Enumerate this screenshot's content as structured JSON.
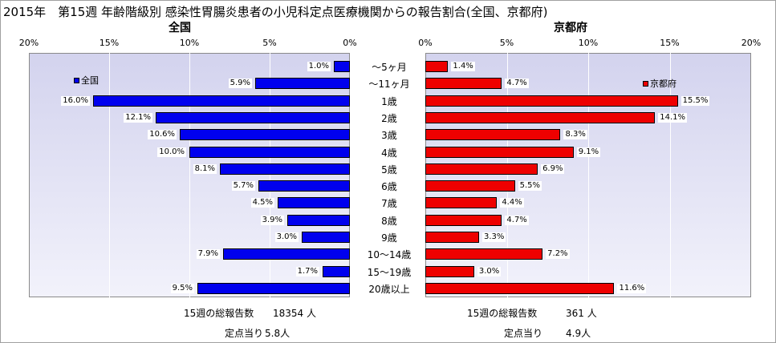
{
  "title": "2015年　第15週 年齢階級別 感染性胃腸炎患者の小児科定点医療機関からの報告割合(全国、京都府)",
  "colors": {
    "left_bar": "#0000ee",
    "right_bar": "#ee0000"
  },
  "chart_data": [
    {
      "type": "bar",
      "orientation": "horizontal",
      "title": "全国",
      "legend": "全国",
      "legend_position": "top-left",
      "xlim": [
        0,
        20
      ],
      "x_direction": "reversed",
      "ticks": [
        "20%",
        "15%",
        "10%",
        "5%",
        "0%"
      ],
      "categories": [
        "～5ヶ月",
        "～11ヶ月",
        "1歳",
        "2歳",
        "3歳",
        "4歳",
        "5歳",
        "6歳",
        "7歳",
        "8歳",
        "9歳",
        "10～14歳",
        "15～19歳",
        "20歳以上"
      ],
      "values": [
        1.0,
        5.9,
        16.0,
        12.1,
        10.6,
        10.0,
        8.1,
        5.7,
        4.5,
        3.9,
        3.0,
        7.9,
        1.7,
        9.5
      ],
      "labels": [
        "1.0%",
        "5.9%",
        "16.0%",
        "12.1%",
        "10.6%",
        "10.0%",
        "8.1%",
        "5.7%",
        "4.5%",
        "3.9%",
        "3.0%",
        "7.9%",
        "1.7%",
        "9.5%"
      ]
    },
    {
      "type": "bar",
      "orientation": "horizontal",
      "title": "京都府",
      "legend": "京都府",
      "legend_position": "top-right",
      "xlim": [
        0,
        20
      ],
      "ticks": [
        "0%",
        "5%",
        "10%",
        "15%",
        "20%"
      ],
      "categories": [
        "～5ヶ月",
        "～11ヶ月",
        "1歳",
        "2歳",
        "3歳",
        "4歳",
        "5歳",
        "6歳",
        "7歳",
        "8歳",
        "9歳",
        "10～14歳",
        "15～19歳",
        "20歳以上"
      ],
      "values": [
        1.4,
        4.7,
        15.5,
        14.1,
        8.3,
        9.1,
        6.9,
        5.5,
        4.4,
        4.7,
        3.3,
        7.2,
        3.0,
        11.6
      ],
      "labels": [
        "1.4%",
        "4.7%",
        "15.5%",
        "14.1%",
        "8.3%",
        "9.1%",
        "6.9%",
        "5.5%",
        "4.4%",
        "4.7%",
        "3.3%",
        "7.2%",
        "3.0%",
        "11.6%"
      ]
    }
  ],
  "notes": {
    "left_total_label": "15週の総報告数",
    "left_total_value": "18354 人",
    "left_per_label": "定点当り",
    "left_per_value": "5.8人",
    "right_total_label": "15週の総報告数",
    "right_total_value": "361 人",
    "right_per_label": "定点当り",
    "right_per_value": "4.9人"
  }
}
